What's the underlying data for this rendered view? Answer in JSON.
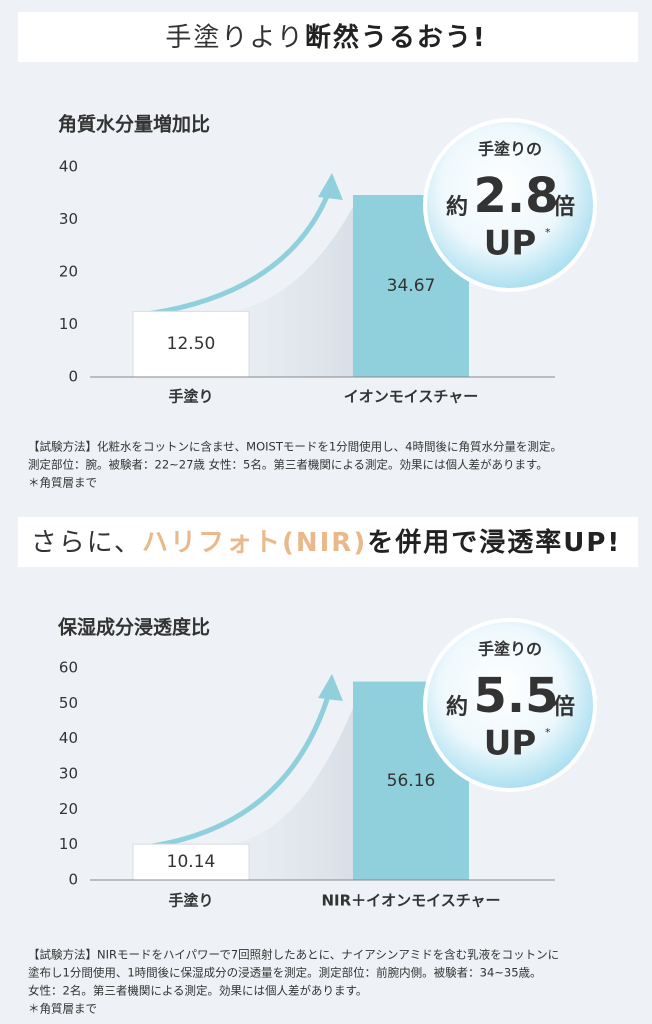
{
  "chart_data": [
    {
      "type": "bar",
      "heading": [
        "手塗りより",
        "断然うるおう!"
      ],
      "title": "角質水分量増加比",
      "categories": [
        "手塗り",
        "イオンモイスチャー"
      ],
      "values": [
        12.5,
        34.67
      ],
      "value_labels": [
        "12.50",
        "34.67"
      ],
      "colors": [
        "#ffffff",
        "#8fd0dc"
      ],
      "ylim": [
        0,
        40
      ],
      "yticks": [
        0,
        10,
        20,
        30,
        40
      ],
      "grid": false,
      "badge": {
        "top": "手塗りの",
        "prefix": "約",
        "ratio": 2.8,
        "suffix": "倍",
        "up": "UP",
        "mark": "*"
      },
      "notes": [
        "【試験方法】化粧水をコットンに含ませ、MOISTモードを1分間使用し、4時間後に角質水分量を測定。",
        "測定部位：腕。被験者：22~27歳 女性：5名。第三者機関による測定。効果には個人差があります。",
        "＊角質層まで"
      ]
    },
    {
      "type": "bar",
      "heading": [
        "さらに、",
        "ハリフォト(NIR)",
        "を併用で浸透率UP!"
      ],
      "title": "保湿成分浸透度比",
      "categories": [
        "手塗り",
        "NIR＋イオンモイスチャー"
      ],
      "values": [
        10.14,
        56.16
      ],
      "colors": [
        "#ffffff",
        "#8fd0dc"
      ],
      "ylim": [
        0,
        60
      ],
      "yticks": [
        0,
        10,
        20,
        30,
        40,
        50,
        60
      ],
      "grid": false,
      "badge": {
        "top": "手塗りの",
        "prefix": "約",
        "ratio": 5.5,
        "suffix": "倍",
        "up": "UP",
        "mark": "*"
      },
      "notes": [
        "【試験方法】NIRモードをハイパワーで7回照射したあとに、ナイアシンアミドを含む乳液をコットンに",
        "塗布し1分間使用、1時間後に保湿成分の浸透量を測定。測定部位：前腕内側。被験者：34~35歳。",
        "女性：2名。第三者機関による測定。効果には個人差があります。",
        "＊角質層まで"
      ]
    }
  ]
}
